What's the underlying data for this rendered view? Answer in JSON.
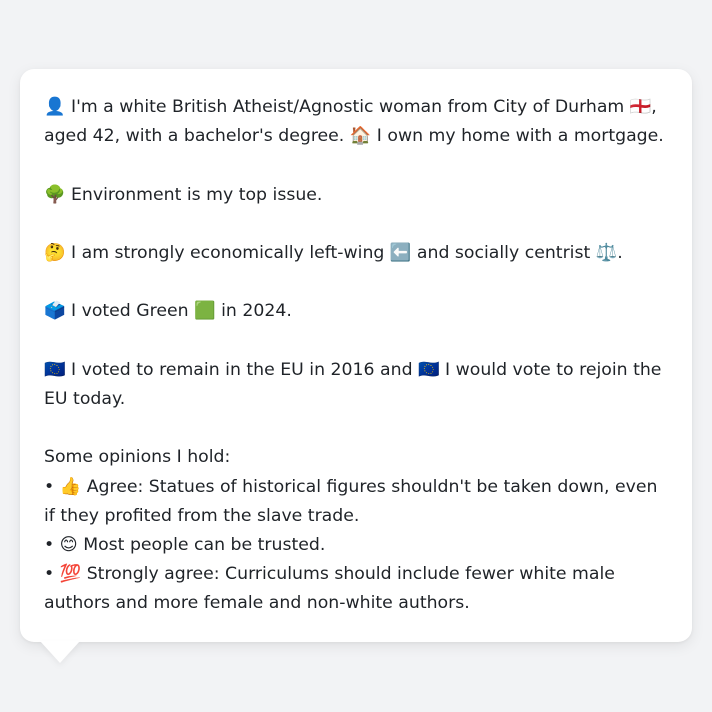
{
  "profile": {
    "intro": "👤 I'm a white British Atheist/Agnostic woman from City of Durham 🏴󠁧󠁢󠁥󠁮󠁧󠁿, aged 42, with a bachelor's degree. 🏠 I own my home with a mortgage.",
    "top_issue": "🌳 Environment is my top issue.",
    "ideology": "🤔 I am strongly economically left-wing ⬅️ and socially centrist ⚖️.",
    "vote_2024": "🗳️ I voted Green 🟩 in 2024.",
    "eu": "🇪🇺 I voted to remain in the EU in 2016 and 🇪🇺 I would vote to rejoin the EU today.",
    "opinions_heading": "Some opinions I hold:",
    "opinions": [
      "• 👍 Agree: Statues of historical figures shouldn't be taken down, even if they profited from the slave trade.",
      "• 😊 Most people can be trusted.",
      "• 💯 Strongly agree: Curriculums should include fewer white male authors and more female and non-white authors."
    ]
  }
}
